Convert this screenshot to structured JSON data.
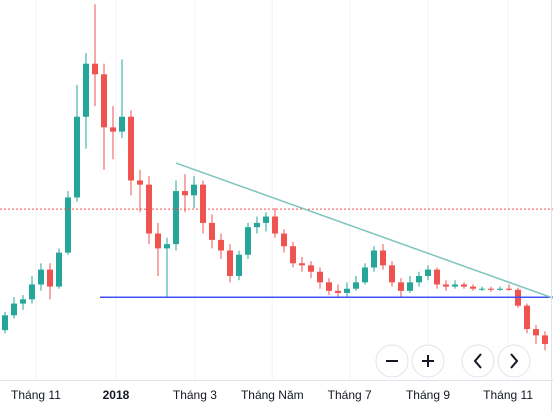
{
  "chart_data": {
    "type": "candlestick",
    "up_color": "#26a69a",
    "down_color": "#ef5350",
    "open": [
      4450,
      5150,
      5700,
      5900,
      6600,
      7300,
      6500,
      8100,
      10700,
      14500,
      17000,
      16500,
      14000,
      13800,
      14500,
      11500,
      11300,
      9000,
      8300,
      8500,
      11000,
      10800,
      11300,
      9500,
      8700,
      8200,
      7000,
      8000,
      9300,
      9500,
      9800,
      9000,
      8400,
      7600,
      7500,
      7200,
      6700,
      6300,
      6200,
      6400,
      6700,
      7400,
      8200,
      7500,
      6700,
      6300,
      6700,
      7000,
      7300,
      6600,
      6500,
      6600,
      6500,
      6400,
      6400,
      6350,
      6400,
      6350,
      5600,
      4500,
      4200
    ],
    "high": [
      5300,
      6000,
      6100,
      7000,
      7600,
      7600,
      8300,
      11000,
      16000,
      17500,
      19800,
      17000,
      15000,
      17200,
      14800,
      12000,
      11700,
      9500,
      8800,
      11500,
      11800,
      11700,
      11500,
      9900,
      9000,
      8500,
      8200,
      9500,
      9800,
      10000,
      10200,
      9200,
      8600,
      7900,
      7700,
      7400,
      6900,
      6600,
      6700,
      7000,
      7600,
      8400,
      8500,
      7700,
      6900,
      7000,
      7200,
      7500,
      7400,
      6800,
      6800,
      6700,
      6600,
      6500,
      6500,
      6500,
      6600,
      6450,
      5700,
      4700,
      4400
    ],
    "low": [
      4300,
      5000,
      5400,
      5700,
      6300,
      5900,
      6400,
      8000,
      10500,
      13000,
      15000,
      12000,
      12500,
      13500,
      10800,
      10000,
      8500,
      7000,
      6000,
      8200,
      10000,
      10200,
      9000,
      8300,
      7800,
      6700,
      6800,
      7800,
      9000,
      9100,
      8800,
      8100,
      7400,
      7200,
      6900,
      6400,
      6100,
      6000,
      6000,
      6300,
      6600,
      7200,
      7300,
      6500,
      6000,
      6200,
      6500,
      6800,
      6400,
      6300,
      6400,
      6400,
      6300,
      6300,
      6250,
      6300,
      6300,
      5500,
      4300,
      3800,
      3500
    ],
    "close": [
      5150,
      5700,
      5900,
      6600,
      7300,
      6500,
      8100,
      10700,
      14500,
      17000,
      16500,
      14000,
      13800,
      14500,
      11500,
      11300,
      9000,
      8300,
      8500,
      11000,
      10800,
      11300,
      9500,
      8700,
      8200,
      7000,
      8000,
      9300,
      9500,
      9800,
      9000,
      8400,
      7600,
      7500,
      7200,
      6700,
      6300,
      6200,
      6400,
      6700,
      7400,
      8200,
      7500,
      6700,
      6300,
      6700,
      7000,
      7300,
      6600,
      6500,
      6600,
      6500,
      6400,
      6400,
      6350,
      6400,
      6350,
      5600,
      4500,
      4200,
      3800
    ],
    "xlim": [
      -0.556,
      60.89
    ],
    "ylim": [
      2100,
      20000
    ],
    "xticks": [
      {
        "value": 3.44,
        "label": "Tháng 11"
      },
      {
        "value": 12.33,
        "label": "2018"
      },
      {
        "value": 21.1,
        "label": "Tháng 3"
      },
      {
        "value": 29.7,
        "label": "Tháng Năm"
      },
      {
        "value": 38.3,
        "label": "Tháng 7"
      },
      {
        "value": 47,
        "label": "Tháng 9"
      },
      {
        "value": 55.9,
        "label": "Tháng 11"
      }
    ],
    "lines": [
      {
        "color": "#ef5350",
        "style": "dotted",
        "x": [
          -0.556,
          60.89
        ],
        "y": [
          10150,
          10150
        ]
      },
      {
        "color": "#3f51f5",
        "style": "solid",
        "x": [
          10.55,
          60.89
        ],
        "y": [
          6000,
          6000
        ]
      },
      {
        "color": "#7fc5bd",
        "style": "solid",
        "x": [
          19,
          60.89
        ],
        "y": [
          12320,
          5960
        ]
      }
    ]
  }
}
